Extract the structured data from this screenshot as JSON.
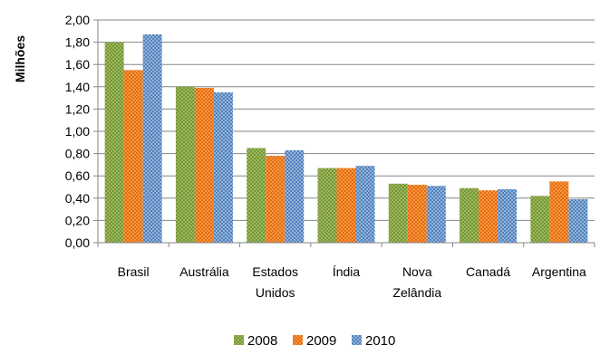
{
  "chart_data": {
    "type": "bar",
    "ylabel": "Milhões",
    "ylim": [
      0,
      2
    ],
    "y_ticks": [
      "0,00",
      "0,20",
      "0,40",
      "0,60",
      "0,80",
      "1,00",
      "1,20",
      "1,40",
      "1,60",
      "1,80",
      "2,00"
    ],
    "grid": true,
    "legend_position": "bottom",
    "categories": [
      [
        "Brasil"
      ],
      [
        "Austrália"
      ],
      [
        "Estados",
        "Unidos"
      ],
      [
        "Índia"
      ],
      [
        "Nova",
        "Zelândia"
      ],
      [
        "Canadá"
      ],
      [
        "Argentina"
      ]
    ],
    "series": [
      {
        "name": "2008",
        "color": "#77933C",
        "values": [
          1.8,
          1.4,
          0.85,
          0.67,
          0.53,
          0.49,
          0.42
        ]
      },
      {
        "name": "2009",
        "color": "#F79646",
        "values": [
          1.55,
          1.39,
          0.78,
          0.67,
          0.52,
          0.47,
          0.55
        ]
      },
      {
        "name": "2010",
        "color": "#4F81BD",
        "values": [
          1.87,
          1.35,
          0.83,
          0.69,
          0.51,
          0.48,
          0.39
        ]
      }
    ]
  }
}
